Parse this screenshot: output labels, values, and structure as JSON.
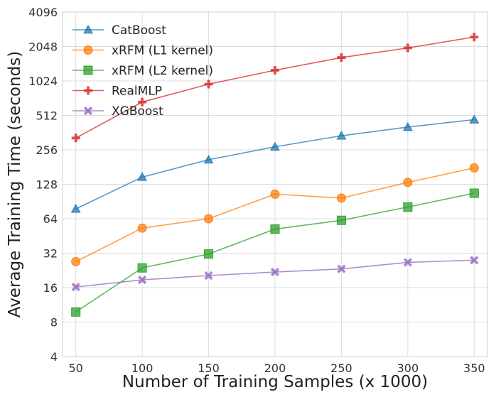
{
  "chart_data": {
    "type": "line",
    "title": "",
    "xlabel": "Number of Training Samples (x 1000)",
    "ylabel": "Average Training Time (seconds)",
    "yscale": "log2",
    "x": [
      50,
      100,
      150,
      200,
      250,
      300,
      350
    ],
    "xticks": [
      "50",
      "100",
      "150",
      "200",
      "250",
      "300",
      "350"
    ],
    "yticks": [
      4,
      8,
      16,
      32,
      64,
      128,
      256,
      512,
      1024,
      2048,
      4096
    ],
    "ytick_labels": [
      "4",
      "8",
      "16",
      "32",
      "64",
      "128",
      "256",
      "512",
      "1024",
      "2048",
      "4096"
    ],
    "xlim": [
      40,
      360
    ],
    "ylim": [
      4,
      4096
    ],
    "grid": true,
    "legend_position": "top-left",
    "series": [
      {
        "name": "CatBoost",
        "color": "#1f77b4",
        "marker": "triangle",
        "values": [
          78,
          148,
          210,
          272,
          340,
          405,
          470
        ]
      },
      {
        "name": "xRFM (L1 kernel)",
        "color": "#ff7f0e",
        "marker": "circle",
        "values": [
          27,
          53,
          64,
          105,
          97,
          133,
          178
        ]
      },
      {
        "name": "xRFM (L2 kernel)",
        "color": "#2ca02c",
        "marker": "square",
        "values": [
          9.8,
          23.8,
          31.5,
          52,
          62,
          81,
          107
        ]
      },
      {
        "name": "RealMLP",
        "color": "#d62728",
        "marker": "plus",
        "values": [
          325,
          670,
          960,
          1270,
          1640,
          1990,
          2480
        ]
      },
      {
        "name": "XGBoost",
        "color": "#9467bd",
        "marker": "x",
        "values": [
          16.2,
          18.7,
          20.4,
          21.9,
          23.3,
          26.6,
          27.8
        ]
      }
    ]
  }
}
